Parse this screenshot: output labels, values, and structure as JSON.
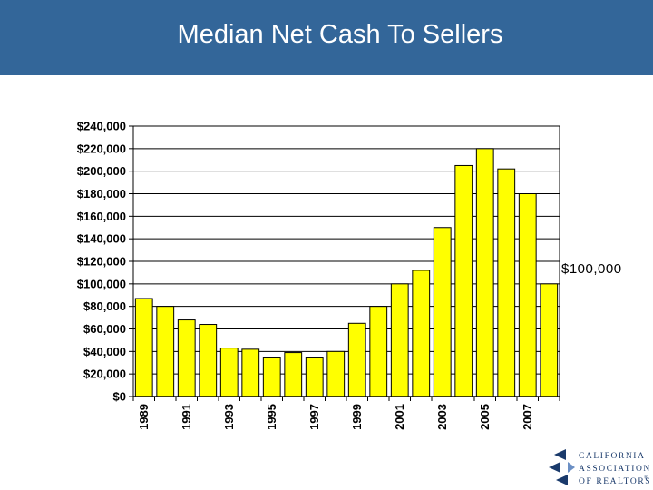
{
  "slide": {
    "title": "Median Net Cash To Sellers",
    "annotation": "$100,000",
    "header_color": "#336699"
  },
  "logo": {
    "line1": "CALIFORNIA",
    "line2": "ASSOCIATION",
    "line3": "OF REALTORS",
    "mark": "®",
    "color": "#1a3a6b"
  },
  "chart_data": {
    "type": "bar",
    "title": "Median Net Cash To Sellers",
    "categories": [
      "1989",
      "1990",
      "1991",
      "1992",
      "1993",
      "1994",
      "1995",
      "1996",
      "1997",
      "1998",
      "1999",
      "2000",
      "2001",
      "2002",
      "2003",
      "2004",
      "2005",
      "2006",
      "2007",
      "2008"
    ],
    "x_tick_labels": [
      "1989",
      "",
      "1991",
      "",
      "1993",
      "",
      "1995",
      "",
      "1997",
      "",
      "1999",
      "",
      "2001",
      "",
      "2003",
      "",
      "2005",
      "",
      "2007",
      ""
    ],
    "values": [
      87000,
      80000,
      68000,
      64000,
      43000,
      42000,
      35000,
      39000,
      35000,
      40000,
      65000,
      80000,
      100000,
      112000,
      150000,
      205000,
      220000,
      202000,
      180000,
      100000
    ],
    "ylim": [
      0,
      240000
    ],
    "y_ticks": [
      0,
      20000,
      40000,
      60000,
      80000,
      100000,
      120000,
      140000,
      160000,
      180000,
      200000,
      220000,
      240000
    ],
    "y_tick_labels": [
      "$0",
      "$20,000",
      "$40,000",
      "$60,000",
      "$80,000",
      "$100,000",
      "$120,000",
      "$140,000",
      "$160,000",
      "$180,000",
      "$200,000",
      "$220,000",
      "$240,000"
    ],
    "xlabel": "",
    "ylabel": "",
    "grid": true,
    "bar_color": "#ffff00",
    "bar_edge_color": "#000000",
    "annotation": "$100,000"
  }
}
